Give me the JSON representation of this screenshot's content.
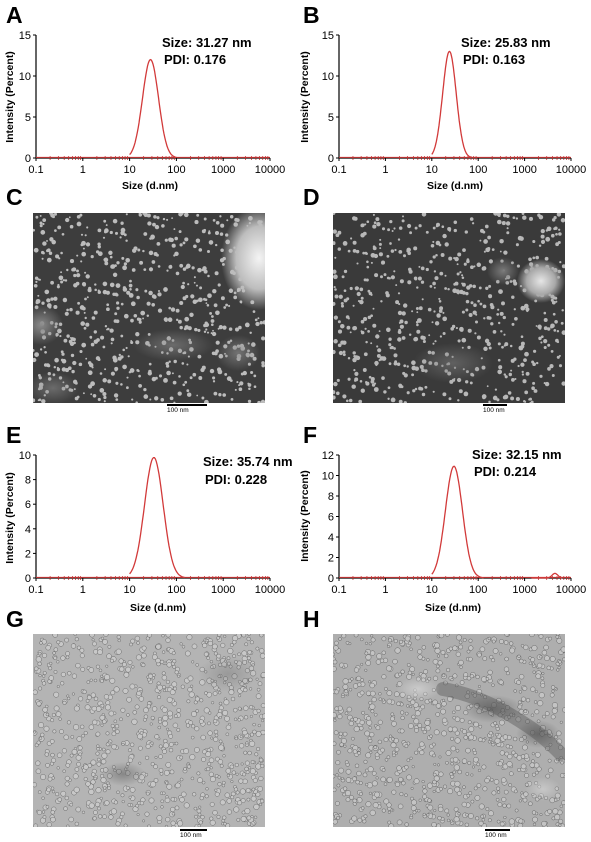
{
  "panel_letters": {
    "A": "A",
    "B": "B",
    "C": "C",
    "D": "D",
    "E": "E",
    "F": "F",
    "G": "G",
    "H": "H"
  },
  "colors": {
    "curve": "#d23a3a",
    "axis": "#000000",
    "tick_marks": "#b02020",
    "image_dark": "#3a3a3a",
    "image_light": "#cfcfcf"
  },
  "chart_data": [
    {
      "panel": "A",
      "type": "line",
      "xlabel": "Size (d.nm)",
      "ylabel": "Intensity (Percent)",
      "x_scale": "log",
      "xlim": [
        0.1,
        10000
      ],
      "ylim": [
        0,
        15
      ],
      "xticks": [
        "0.1",
        "1",
        "10",
        "100",
        "1000",
        "10000"
      ],
      "yticks": [
        "0",
        "5",
        "10",
        "15"
      ],
      "annotation_size": "Size: 31.27 nm",
      "annotation_pdi": "PDI: 0.176",
      "series": [
        {
          "peak_x": 28,
          "peak_y": 12.0,
          "from_x": 10,
          "to_x": 100
        }
      ]
    },
    {
      "panel": "B",
      "type": "line",
      "xlabel": "Size (d.nm)",
      "ylabel": "Intensity (Percent)",
      "x_scale": "log",
      "xlim": [
        0.1,
        10000
      ],
      "ylim": [
        0,
        15
      ],
      "xticks": [
        "0.1",
        "1",
        "10",
        "100",
        "1000",
        "10000"
      ],
      "yticks": [
        "0",
        "5",
        "10",
        "15"
      ],
      "annotation_size": "Size: 25.83 nm",
      "annotation_pdi": "PDI: 0.163",
      "series": [
        {
          "peak_x": 24,
          "peak_y": 13.0,
          "from_x": 10,
          "to_x": 70
        }
      ]
    },
    {
      "panel": "E",
      "type": "line",
      "xlabel": "Size (d.nm)",
      "ylabel": "Intensity (Percent)",
      "x_scale": "log",
      "xlim": [
        0.1,
        10000
      ],
      "ylim": [
        0,
        10
      ],
      "xticks": [
        "0.1",
        "1",
        "10",
        "100",
        "1000",
        "10000"
      ],
      "yticks": [
        "0",
        "2",
        "4",
        "6",
        "8",
        "10"
      ],
      "annotation_size": "Size: 35.74 nm",
      "annotation_pdi": "PDI: 0.228",
      "series": [
        {
          "peak_x": 33,
          "peak_y": 9.8,
          "from_x": 10,
          "to_x": 150
        }
      ]
    },
    {
      "panel": "F",
      "type": "line",
      "xlabel": "Size (d.nm)",
      "ylabel": "Intensity (Percent)",
      "x_scale": "log",
      "xlim": [
        0.1,
        10000
      ],
      "ylim": [
        0,
        12
      ],
      "xticks": [
        "0.1",
        "1",
        "10",
        "100",
        "1000",
        "10000"
      ],
      "yticks": [
        "0",
        "2",
        "4",
        "6",
        "8",
        "10",
        "12"
      ],
      "annotation_size": "Size: 32.15 nm",
      "annotation_pdi": "PDI: 0.214",
      "series": [
        {
          "peak_x": 30,
          "peak_y": 10.9,
          "from_x": 10,
          "to_x": 130
        },
        {
          "peak_x": 4500,
          "peak_y": 0.45,
          "from_x": 1400,
          "to_x": 6500
        }
      ]
    }
  ],
  "images": {
    "C": {
      "scale_label": "100 nm"
    },
    "D": {
      "scale_label": "100 nm"
    },
    "G": {
      "scale_label": "100 nm"
    },
    "H": {
      "scale_label": "100 nm"
    }
  }
}
